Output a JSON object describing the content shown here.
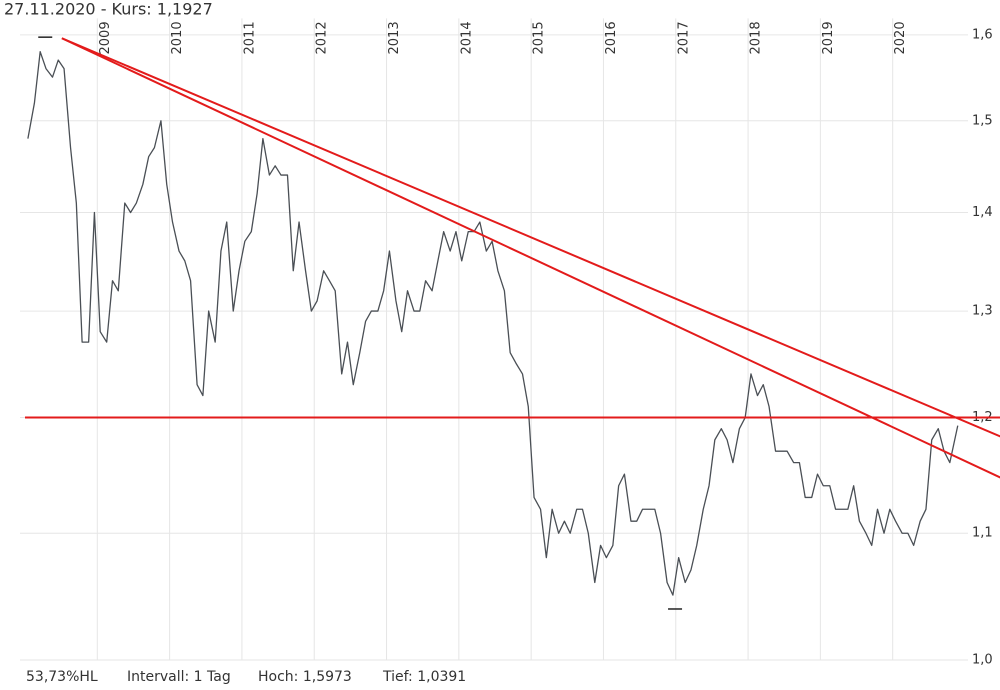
{
  "chart_data": {
    "type": "line",
    "title": "27.11.2020  - Kurs: 1,1927",
    "footer": [
      "53,73%HL",
      "Intervall: 1 Tag",
      "Hoch: 1,5973",
      "Tief: 1,0391"
    ],
    "log_scale": true,
    "grid": true,
    "color": "#4a4f55",
    "xlim": [
      2008.0,
      2021.0
    ],
    "xticks": [
      2009,
      2010,
      2011,
      2012,
      2013,
      2014,
      2015,
      2016,
      2017,
      2018,
      2019,
      2020
    ],
    "ylim": [
      1.0,
      1.62
    ],
    "yticks": [
      {
        "value": 1.0,
        "label": "1,0"
      },
      {
        "value": 1.1,
        "label": "1,1"
      },
      {
        "value": 1.2,
        "label": "1,2"
      },
      {
        "value": 1.3,
        "label": "1,3"
      },
      {
        "value": 1.4,
        "label": "1,4"
      },
      {
        "value": 1.5,
        "label": "1,5"
      },
      {
        "value": 1.6,
        "label": "1,6"
      }
    ],
    "x": [
      2008.04,
      2008.13,
      2008.21,
      2008.29,
      2008.38,
      2008.46,
      2008.54,
      2008.63,
      2008.71,
      2008.79,
      2008.88,
      2008.96,
      2009.04,
      2009.13,
      2009.21,
      2009.29,
      2009.38,
      2009.46,
      2009.54,
      2009.63,
      2009.71,
      2009.79,
      2009.88,
      2009.96,
      2010.04,
      2010.13,
      2010.21,
      2010.29,
      2010.38,
      2010.46,
      2010.54,
      2010.63,
      2010.71,
      2010.79,
      2010.88,
      2010.96,
      2011.04,
      2011.13,
      2011.21,
      2011.29,
      2011.38,
      2011.46,
      2011.54,
      2011.63,
      2011.71,
      2011.79,
      2011.88,
      2011.96,
      2012.04,
      2012.13,
      2012.21,
      2012.29,
      2012.38,
      2012.46,
      2012.54,
      2012.63,
      2012.71,
      2012.79,
      2012.88,
      2012.96,
      2013.04,
      2013.13,
      2013.21,
      2013.29,
      2013.38,
      2013.46,
      2013.54,
      2013.63,
      2013.71,
      2013.79,
      2013.88,
      2013.96,
      2014.04,
      2014.13,
      2014.21,
      2014.29,
      2014.38,
      2014.46,
      2014.54,
      2014.63,
      2014.71,
      2014.79,
      2014.88,
      2014.96,
      2015.04,
      2015.13,
      2015.21,
      2015.29,
      2015.38,
      2015.46,
      2015.54,
      2015.63,
      2015.71,
      2015.79,
      2015.88,
      2015.96,
      2016.04,
      2016.13,
      2016.21,
      2016.29,
      2016.38,
      2016.46,
      2016.54,
      2016.63,
      2016.71,
      2016.79,
      2016.88,
      2016.96,
      2017.04,
      2017.13,
      2017.21,
      2017.29,
      2017.38,
      2017.46,
      2017.54,
      2017.63,
      2017.71,
      2017.79,
      2017.88,
      2017.96,
      2018.04,
      2018.13,
      2018.21,
      2018.29,
      2018.38,
      2018.46,
      2018.54,
      2018.63,
      2018.71,
      2018.79,
      2018.88,
      2018.96,
      2019.04,
      2019.13,
      2019.21,
      2019.29,
      2019.38,
      2019.46,
      2019.54,
      2019.63,
      2019.71,
      2019.79,
      2019.88,
      2019.96,
      2020.04,
      2020.13,
      2020.21,
      2020.29,
      2020.38,
      2020.46,
      2020.54,
      2020.63,
      2020.71,
      2020.79,
      2020.9
    ],
    "values": [
      1.48,
      1.52,
      1.58,
      1.56,
      1.55,
      1.57,
      1.56,
      1.47,
      1.41,
      1.27,
      1.27,
      1.4,
      1.28,
      1.27,
      1.33,
      1.32,
      1.41,
      1.4,
      1.41,
      1.43,
      1.46,
      1.47,
      1.5,
      1.43,
      1.39,
      1.36,
      1.35,
      1.33,
      1.23,
      1.22,
      1.3,
      1.27,
      1.36,
      1.39,
      1.3,
      1.34,
      1.37,
      1.38,
      1.42,
      1.48,
      1.44,
      1.45,
      1.44,
      1.44,
      1.34,
      1.39,
      1.34,
      1.3,
      1.31,
      1.34,
      1.33,
      1.32,
      1.24,
      1.27,
      1.23,
      1.26,
      1.29,
      1.3,
      1.3,
      1.32,
      1.36,
      1.31,
      1.28,
      1.32,
      1.3,
      1.3,
      1.33,
      1.32,
      1.35,
      1.38,
      1.36,
      1.38,
      1.35,
      1.38,
      1.38,
      1.39,
      1.36,
      1.37,
      1.34,
      1.32,
      1.26,
      1.25,
      1.24,
      1.21,
      1.13,
      1.12,
      1.08,
      1.12,
      1.1,
      1.11,
      1.1,
      1.12,
      1.12,
      1.1,
      1.06,
      1.09,
      1.08,
      1.09,
      1.14,
      1.15,
      1.11,
      1.11,
      1.12,
      1.12,
      1.12,
      1.1,
      1.06,
      1.05,
      1.08,
      1.06,
      1.07,
      1.09,
      1.12,
      1.14,
      1.18,
      1.19,
      1.18,
      1.16,
      1.19,
      1.2,
      1.24,
      1.22,
      1.23,
      1.21,
      1.17,
      1.17,
      1.17,
      1.16,
      1.16,
      1.13,
      1.13,
      1.15,
      1.14,
      1.14,
      1.12,
      1.12,
      1.12,
      1.14,
      1.11,
      1.1,
      1.09,
      1.12,
      1.1,
      1.12,
      1.11,
      1.1,
      1.1,
      1.09,
      1.11,
      1.12,
      1.18,
      1.19,
      1.17,
      1.16,
      1.1927
    ],
    "markers": [
      {
        "x": 2008.28,
        "value": 1.5973
      },
      {
        "x": 2016.99,
        "value": 1.0391
      }
    ],
    "trendline_color": "#e31b1b",
    "trendlines": [
      {
        "x": [
          2008.0,
          2021.49
        ],
        "y": [
          1.2,
          1.2
        ]
      },
      {
        "x": [
          2008.51,
          2021.49
        ],
        "y": [
          1.596,
          1.183
        ]
      },
      {
        "x": [
          2008.51,
          2021.49
        ],
        "y": [
          1.596,
          1.147
        ]
      }
    ]
  }
}
